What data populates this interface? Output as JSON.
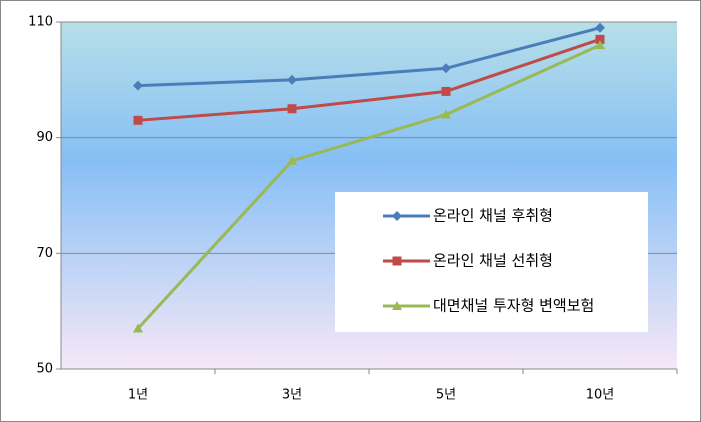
{
  "chart_data": {
    "type": "line",
    "categories": [
      "1년",
      "3년",
      "5년",
      "10년"
    ],
    "series": [
      {
        "name": "온라인 채널 후취형",
        "color": "#4a7ebb",
        "marker": "diamond",
        "values": [
          99,
          100,
          102,
          109
        ]
      },
      {
        "name": "온라인 채널 선취형",
        "color": "#be4b48",
        "marker": "square",
        "values": [
          93,
          95,
          98,
          107
        ]
      },
      {
        "name": "대면채널 투자형 변액보험",
        "color": "#98b954",
        "marker": "triangle",
        "values": [
          57,
          86,
          94,
          106
        ]
      }
    ],
    "ylim": [
      50,
      110
    ],
    "yticks": [
      50,
      70,
      90,
      110
    ],
    "grid": true,
    "legend": "right"
  }
}
